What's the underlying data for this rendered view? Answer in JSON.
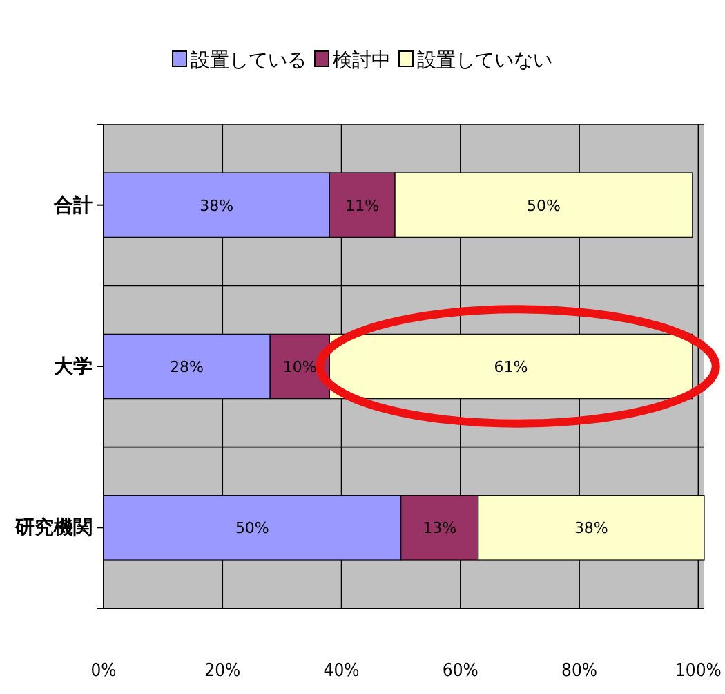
{
  "chart_data": {
    "type": "bar",
    "orientation": "horizontal",
    "stacked": true,
    "categories": [
      "合計",
      "大学",
      "研究機関"
    ],
    "series": [
      {
        "name": "設置している",
        "color": "#9999ff",
        "values": [
          38,
          28,
          50
        ],
        "value_labels": [
          "38%",
          "28%",
          "50%"
        ]
      },
      {
        "name": "検討中",
        "color": "#993366",
        "values": [
          11,
          10,
          13
        ],
        "value_labels": [
          "11%",
          "10%",
          "13%"
        ]
      },
      {
        "name": "設置していない",
        "color": "#ffffcc",
        "values": [
          50,
          61,
          38
        ],
        "value_labels": [
          "50%",
          "61%",
          "38%"
        ]
      }
    ],
    "xlim": [
      0,
      101
    ],
    "xticks": [
      {
        "value": 0,
        "label": "0%"
      },
      {
        "value": 20,
        "label": "20%"
      },
      {
        "value": 40,
        "label": "40%"
      },
      {
        "value": 60,
        "label": "60%"
      },
      {
        "value": 80,
        "label": "80%"
      },
      {
        "value": 100,
        "label": "100%"
      }
    ],
    "grid": true,
    "legend": "top"
  }
}
